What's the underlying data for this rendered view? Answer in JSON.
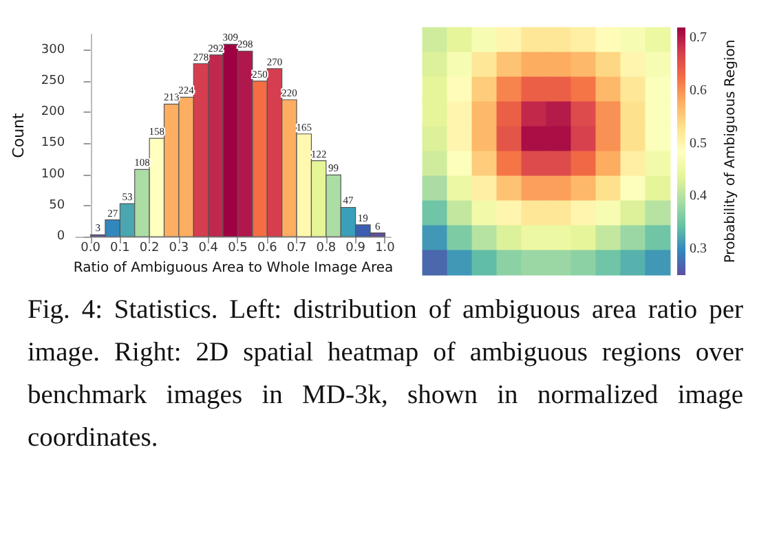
{
  "chart_data": [
    {
      "type": "histogram",
      "xlabel": "Ratio of Ambiguous Area to Whole Image Area",
      "ylabel": "Count",
      "bins": [
        0,
        0.05,
        0.1,
        0.15,
        0.2,
        0.25,
        0.3,
        0.35,
        0.4,
        0.45,
        0.5,
        0.55,
        0.6,
        0.65,
        0.7,
        0.75,
        0.8,
        0.85,
        0.9,
        0.95,
        1.0
      ],
      "values": [
        3,
        27,
        53,
        108,
        158,
        213,
        224,
        278,
        292,
        309,
        298,
        250,
        270,
        220,
        165,
        122,
        99,
        47,
        19,
        6
      ],
      "colors": [
        "#5e4fa2",
        "#3288bd",
        "#4aa6b0",
        "#abdda4",
        "#ffffbf",
        "#fdae61",
        "#fdae61",
        "#d53e4f",
        "#c0284e",
        "#9e0142",
        "#b0174d",
        "#f46d43",
        "#d53e4f",
        "#fdae61",
        "#fff9b0",
        "#e6f598",
        "#abdda4",
        "#3a9fb8",
        "#3a5fb0",
        "#5e4fa2"
      ],
      "xlim": [
        -0.05,
        1.02
      ],
      "xticks": [
        {
          "value": 0,
          "label": "0.0"
        },
        0.1,
        0.2,
        0.3,
        0.4,
        0.5,
        0.6,
        0.7,
        0.8,
        0.9,
        {
          "value": 1,
          "label": "1.0"
        }
      ],
      "ylim": [
        0,
        325
      ],
      "yticks": [
        0,
        50,
        100,
        150,
        200,
        250,
        300
      ],
      "data_labels": true,
      "grid": false,
      "annotations": [
        "Fig. 4: Statistics. Left: distribution of ambiguous area ratio per image. Right: 2D spatial heatmap of ambiguous regions over benchmark images in MD-3k, shown in normalized image coordinates."
      ]
    },
    {
      "type": "heatmap",
      "clabel": "Probability of Ambiguous Region",
      "clim": [
        0.25,
        0.72
      ],
      "cticks": [
        0.3,
        0.4,
        0.5,
        0.6,
        0.7
      ],
      "categories": [
        null,
        null,
        null,
        null,
        null,
        null,
        null,
        null,
        null,
        null
      ],
      "y_categories": [
        null,
        null,
        null,
        null,
        null,
        null,
        null,
        null,
        null,
        null
      ],
      "cells": [
        [
          0.42,
          0.44,
          0.47,
          0.5,
          0.52,
          0.52,
          0.51,
          0.49,
          0.47,
          0.45
        ],
        [
          0.43,
          0.47,
          0.52,
          0.56,
          0.58,
          0.58,
          0.57,
          0.54,
          0.5,
          0.47
        ],
        [
          0.44,
          0.49,
          0.55,
          0.61,
          0.64,
          0.64,
          0.62,
          0.57,
          0.52,
          0.48
        ],
        [
          0.44,
          0.5,
          0.57,
          0.64,
          0.69,
          0.7,
          0.66,
          0.6,
          0.53,
          0.48
        ],
        [
          0.43,
          0.5,
          0.57,
          0.65,
          0.71,
          0.71,
          0.67,
          0.6,
          0.53,
          0.48
        ],
        [
          0.42,
          0.48,
          0.55,
          0.62,
          0.66,
          0.66,
          0.63,
          0.58,
          0.51,
          0.46
        ],
        [
          0.39,
          0.45,
          0.51,
          0.56,
          0.59,
          0.59,
          0.57,
          0.53,
          0.48,
          0.44
        ],
        [
          0.35,
          0.41,
          0.46,
          0.5,
          0.52,
          0.52,
          0.5,
          0.47,
          0.43,
          0.4
        ],
        [
          0.31,
          0.36,
          0.4,
          0.43,
          0.45,
          0.45,
          0.44,
          0.41,
          0.38,
          0.35
        ],
        [
          0.27,
          0.31,
          0.34,
          0.37,
          0.38,
          0.38,
          0.37,
          0.35,
          0.33,
          0.31
        ]
      ]
    }
  ]
}
